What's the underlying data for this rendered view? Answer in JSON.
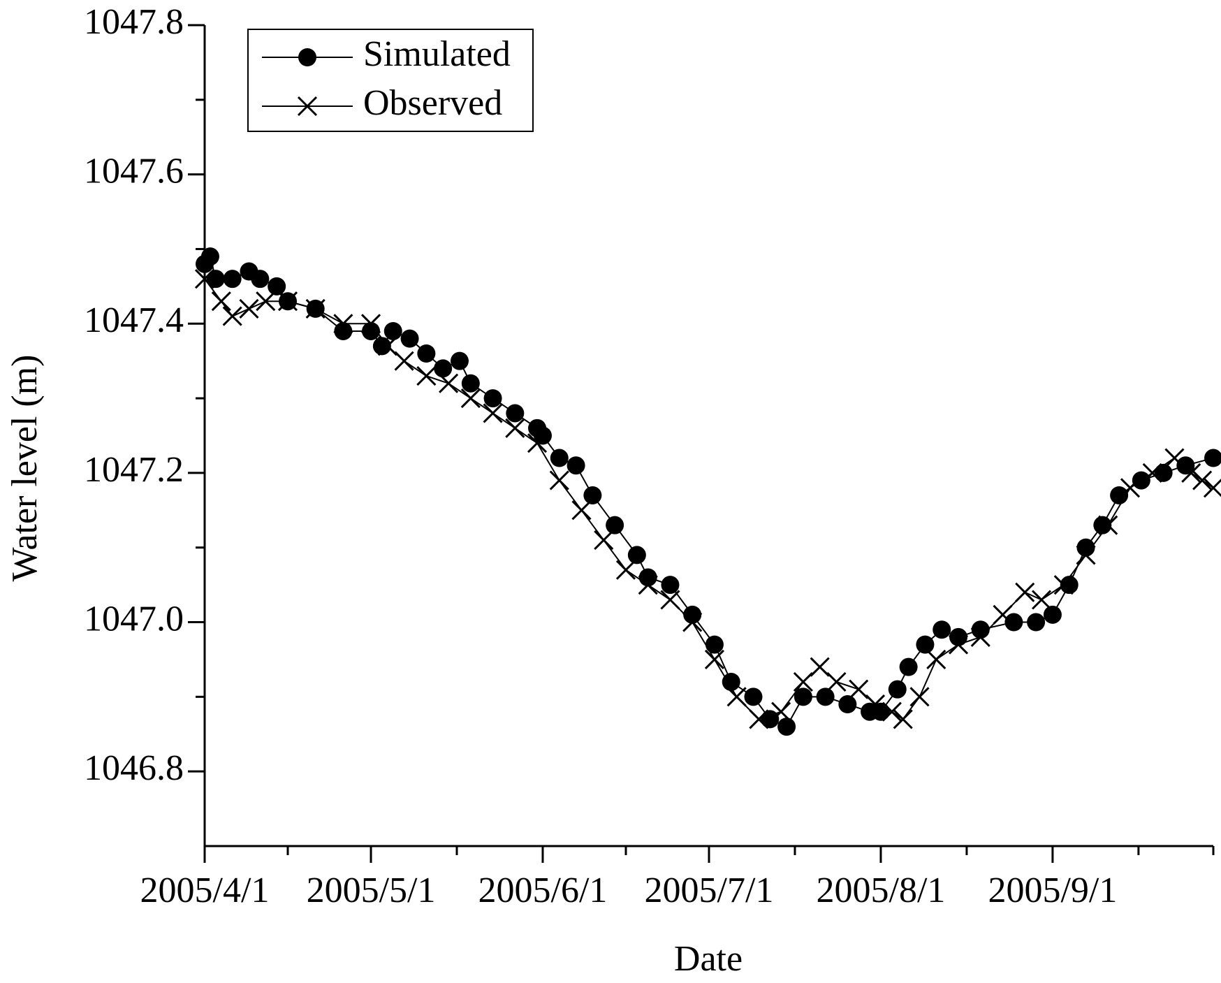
{
  "chart_data": {
    "type": "line",
    "x_label": "Date",
    "y_label": "Water level (m)",
    "xlim": [
      "2005/4/1",
      "2005/9/30"
    ],
    "xticks": [
      "2005/4/1",
      "2005/5/1",
      "2005/6/1",
      "2005/7/1",
      "2005/8/1",
      "2005/9/1"
    ],
    "ylim": [
      1046.7,
      1047.8
    ],
    "yticks": [
      1046.8,
      {
        "value": 1047.0,
        "label": "1047.0"
      },
      1047.2,
      1047.4,
      1047.6,
      1047.8
    ],
    "legend": "upper left",
    "series": [
      {
        "name": "Simulated",
        "color": "#000000",
        "marker": "circle",
        "x": [
          "2005/4/1",
          "2005/4/2",
          "2005/4/3",
          "2005/4/6",
          "2005/4/9",
          "2005/4/11",
          "2005/4/14",
          "2005/4/16",
          "2005/4/21",
          "2005/4/26",
          "2005/5/1",
          "2005/5/3",
          "2005/5/5",
          "2005/5/8",
          "2005/5/11",
          "2005/5/14",
          "2005/5/17",
          "2005/5/19",
          "2005/5/23",
          "2005/5/27",
          "2005/5/31",
          "2005/6/1",
          "2005/6/4",
          "2005/6/7",
          "2005/6/10",
          "2005/6/14",
          "2005/6/18",
          "2005/6/20",
          "2005/6/24",
          "2005/6/28",
          "2005/7/2",
          "2005/7/5",
          "2005/7/9",
          "2005/7/12",
          "2005/7/15",
          "2005/7/18",
          "2005/7/22",
          "2005/7/26",
          "2005/7/30",
          "2005/8/1",
          "2005/8/4",
          "2005/8/6",
          "2005/8/9",
          "2005/8/12",
          "2005/8/15",
          "2005/8/19",
          "2005/8/25",
          "2005/8/29",
          "2005/9/1",
          "2005/9/4",
          "2005/9/7",
          "2005/9/10",
          "2005/9/13",
          "2005/9/17",
          "2005/9/21",
          "2005/9/25",
          "2005/9/30"
        ],
        "values": [
          1047.48,
          1047.49,
          1047.46,
          1047.46,
          1047.47,
          1047.46,
          1047.45,
          1047.43,
          1047.42,
          1047.39,
          1047.39,
          1047.37,
          1047.39,
          1047.38,
          1047.36,
          1047.34,
          1047.35,
          1047.32,
          1047.3,
          1047.28,
          1047.26,
          1047.25,
          1047.22,
          1047.21,
          1047.17,
          1047.13,
          1047.09,
          1047.06,
          1047.05,
          1047.01,
          1046.97,
          1046.92,
          1046.9,
          1046.87,
          1046.86,
          1046.9,
          1046.9,
          1046.89,
          1046.88,
          1046.88,
          1046.91,
          1046.94,
          1046.97,
          1046.99,
          1046.98,
          1046.99,
          1047.0,
          1047.0,
          1047.01,
          1047.05,
          1047.1,
          1047.13,
          1047.17,
          1047.19,
          1047.2,
          1047.21,
          1047.22
        ]
      },
      {
        "name": "Observed",
        "color": "#000000",
        "marker": "cross",
        "x": [
          "2005/4/1",
          "2005/4/4",
          "2005/4/6",
          "2005/4/9",
          "2005/4/12",
          "2005/4/16",
          "2005/4/21",
          "2005/4/26",
          "2005/5/1",
          "2005/5/4",
          "2005/5/7",
          "2005/5/11",
          "2005/5/15",
          "2005/5/19",
          "2005/5/23",
          "2005/5/27",
          "2005/5/31",
          "2005/6/4",
          "2005/6/8",
          "2005/6/12",
          "2005/6/16",
          "2005/6/20",
          "2005/6/24",
          "2005/6/28",
          "2005/7/2",
          "2005/7/6",
          "2005/7/10",
          "2005/7/14",
          "2005/7/18",
          "2005/7/21",
          "2005/7/24",
          "2005/7/28",
          "2005/7/31",
          "2005/8/3",
          "2005/8/5",
          "2005/8/8",
          "2005/8/11",
          "2005/8/15",
          "2005/8/19",
          "2005/8/23",
          "2005/8/27",
          "2005/8/30",
          "2005/9/3",
          "2005/9/7",
          "2005/9/11",
          "2005/9/15",
          "2005/9/19",
          "2005/9/23",
          "2005/9/26",
          "2005/9/28",
          "2005/9/30"
        ],
        "values": [
          1047.46,
          1047.43,
          1047.41,
          1047.42,
          1047.43,
          1047.43,
          1047.42,
          1047.4,
          1047.4,
          1047.37,
          1047.35,
          1047.33,
          1047.32,
          1047.3,
          1047.28,
          1047.26,
          1047.24,
          1047.19,
          1047.15,
          1047.11,
          1047.07,
          1047.05,
          1047.03,
          1047.0,
          1046.95,
          1046.9,
          1046.87,
          1046.88,
          1046.92,
          1046.94,
          1046.92,
          1046.91,
          1046.89,
          1046.88,
          1046.87,
          1046.9,
          1046.95,
          1046.97,
          1046.98,
          1047.01,
          1047.04,
          1047.03,
          1047.05,
          1047.09,
          1047.13,
          1047.18,
          1047.2,
          1047.22,
          1047.2,
          1047.19,
          1047.18
        ]
      }
    ]
  }
}
